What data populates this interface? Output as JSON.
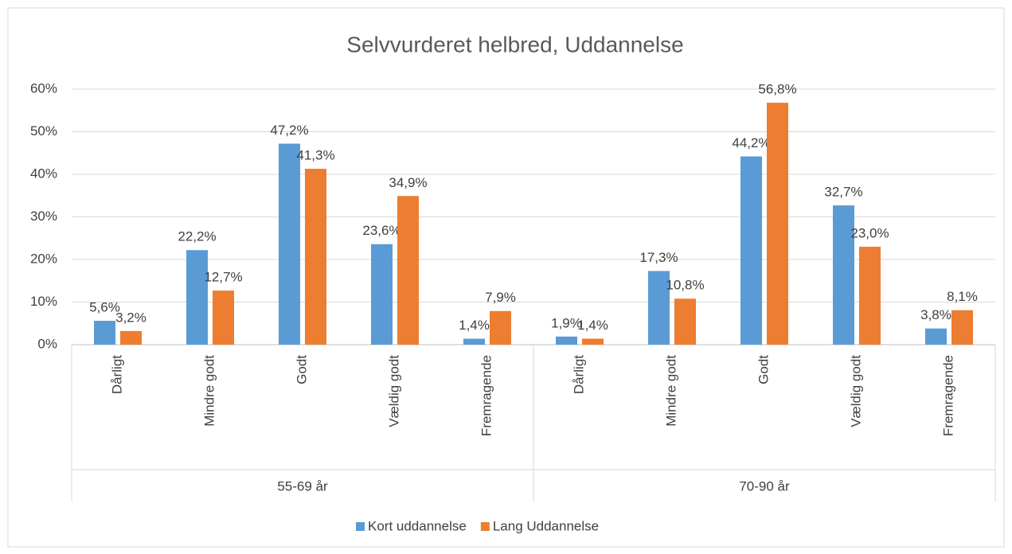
{
  "chart_data": {
    "type": "bar",
    "title": "Selvvurderet helbred, Uddannelse",
    "categories": [
      "Dårligt",
      "Mindre godt",
      "Godt",
      "Vældig godt",
      "Fremragende",
      "Dårligt",
      "Mindre godt",
      "Godt",
      "Vældig godt",
      "Fremragende"
    ],
    "category_groups": [
      "55-69 år",
      "70-90 år"
    ],
    "series": [
      {
        "name": "Kort uddannelse",
        "color": "#5b9bd5",
        "values": [
          5.6,
          22.2,
          47.2,
          23.6,
          1.4,
          1.9,
          17.3,
          44.2,
          32.7,
          3.8
        ],
        "value_labels": [
          "5,6%",
          "22,2%",
          "47,2%",
          "23,6%",
          "1,4%",
          "1,9%",
          "17,3%",
          "44,2%",
          "32,7%",
          "3,8%"
        ]
      },
      {
        "name": "Lang Uddannelse",
        "color": "#ed7d31",
        "values": [
          3.2,
          12.7,
          41.3,
          34.9,
          7.9,
          1.4,
          10.8,
          56.8,
          23.0,
          8.1
        ],
        "value_labels": [
          "3,2%",
          "12,7%",
          "41,3%",
          "34,9%",
          "7,9%",
          "1,4%",
          "10,8%",
          "56,8%",
          "23,0%",
          "8,1%"
        ]
      }
    ],
    "ylim": [
      0,
      60
    ],
    "yticks": [
      {
        "value": 0,
        "label": "0%"
      },
      {
        "value": 10,
        "label": "10%"
      },
      {
        "value": 20,
        "label": "20%"
      },
      {
        "value": 30,
        "label": "30%"
      },
      {
        "value": 40,
        "label": "40%"
      },
      {
        "value": 50,
        "label": "50%"
      },
      {
        "value": 60,
        "label": "60%"
      }
    ],
    "grid": true,
    "legend": "bottom"
  }
}
